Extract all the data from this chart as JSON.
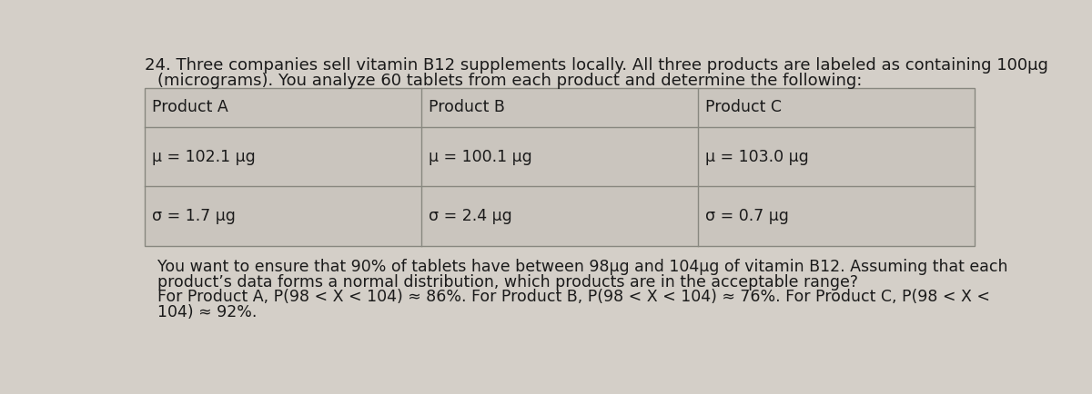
{
  "question_number": "24.",
  "question_text_line1": "Three companies sell vitamin B12 supplements locally. All three products are labeled as containing 100µg",
  "question_text_line2": "(micrograms). You analyze 60 tablets from each product and determine the following:",
  "col_headers": [
    "Product A",
    "Product B",
    "Product C"
  ],
  "row_mu": [
    "μ = 102.1 µg",
    "μ = 100.1 µg",
    "μ = 103.0 µg"
  ],
  "row_sigma": [
    "σ = 1.7 µg",
    "σ = 2.4 µg",
    "σ = 0.7 µg"
  ],
  "answer_line1": "You want to ensure that 90% of tablets have between 98µg and 104µg of vitamin B12. Assuming that each",
  "answer_line2": "product’s data forms a normal distribution, which products are in the acceptable range?",
  "answer_line3": "For Product A, P(98 < X < 104) ≈ 86%. For Product B, P(98 < X < 104) ≈ 76%. For Product C, P(98 < X <",
  "answer_line4": "104) ≈ 92%.",
  "bg_color": "#d4cfc8",
  "table_bg": "#cac5be",
  "text_color": "#1a1a1a",
  "table_line_color": "#888880",
  "font_size_question": 13.0,
  "font_size_table": 12.5,
  "font_size_answer": 12.5
}
